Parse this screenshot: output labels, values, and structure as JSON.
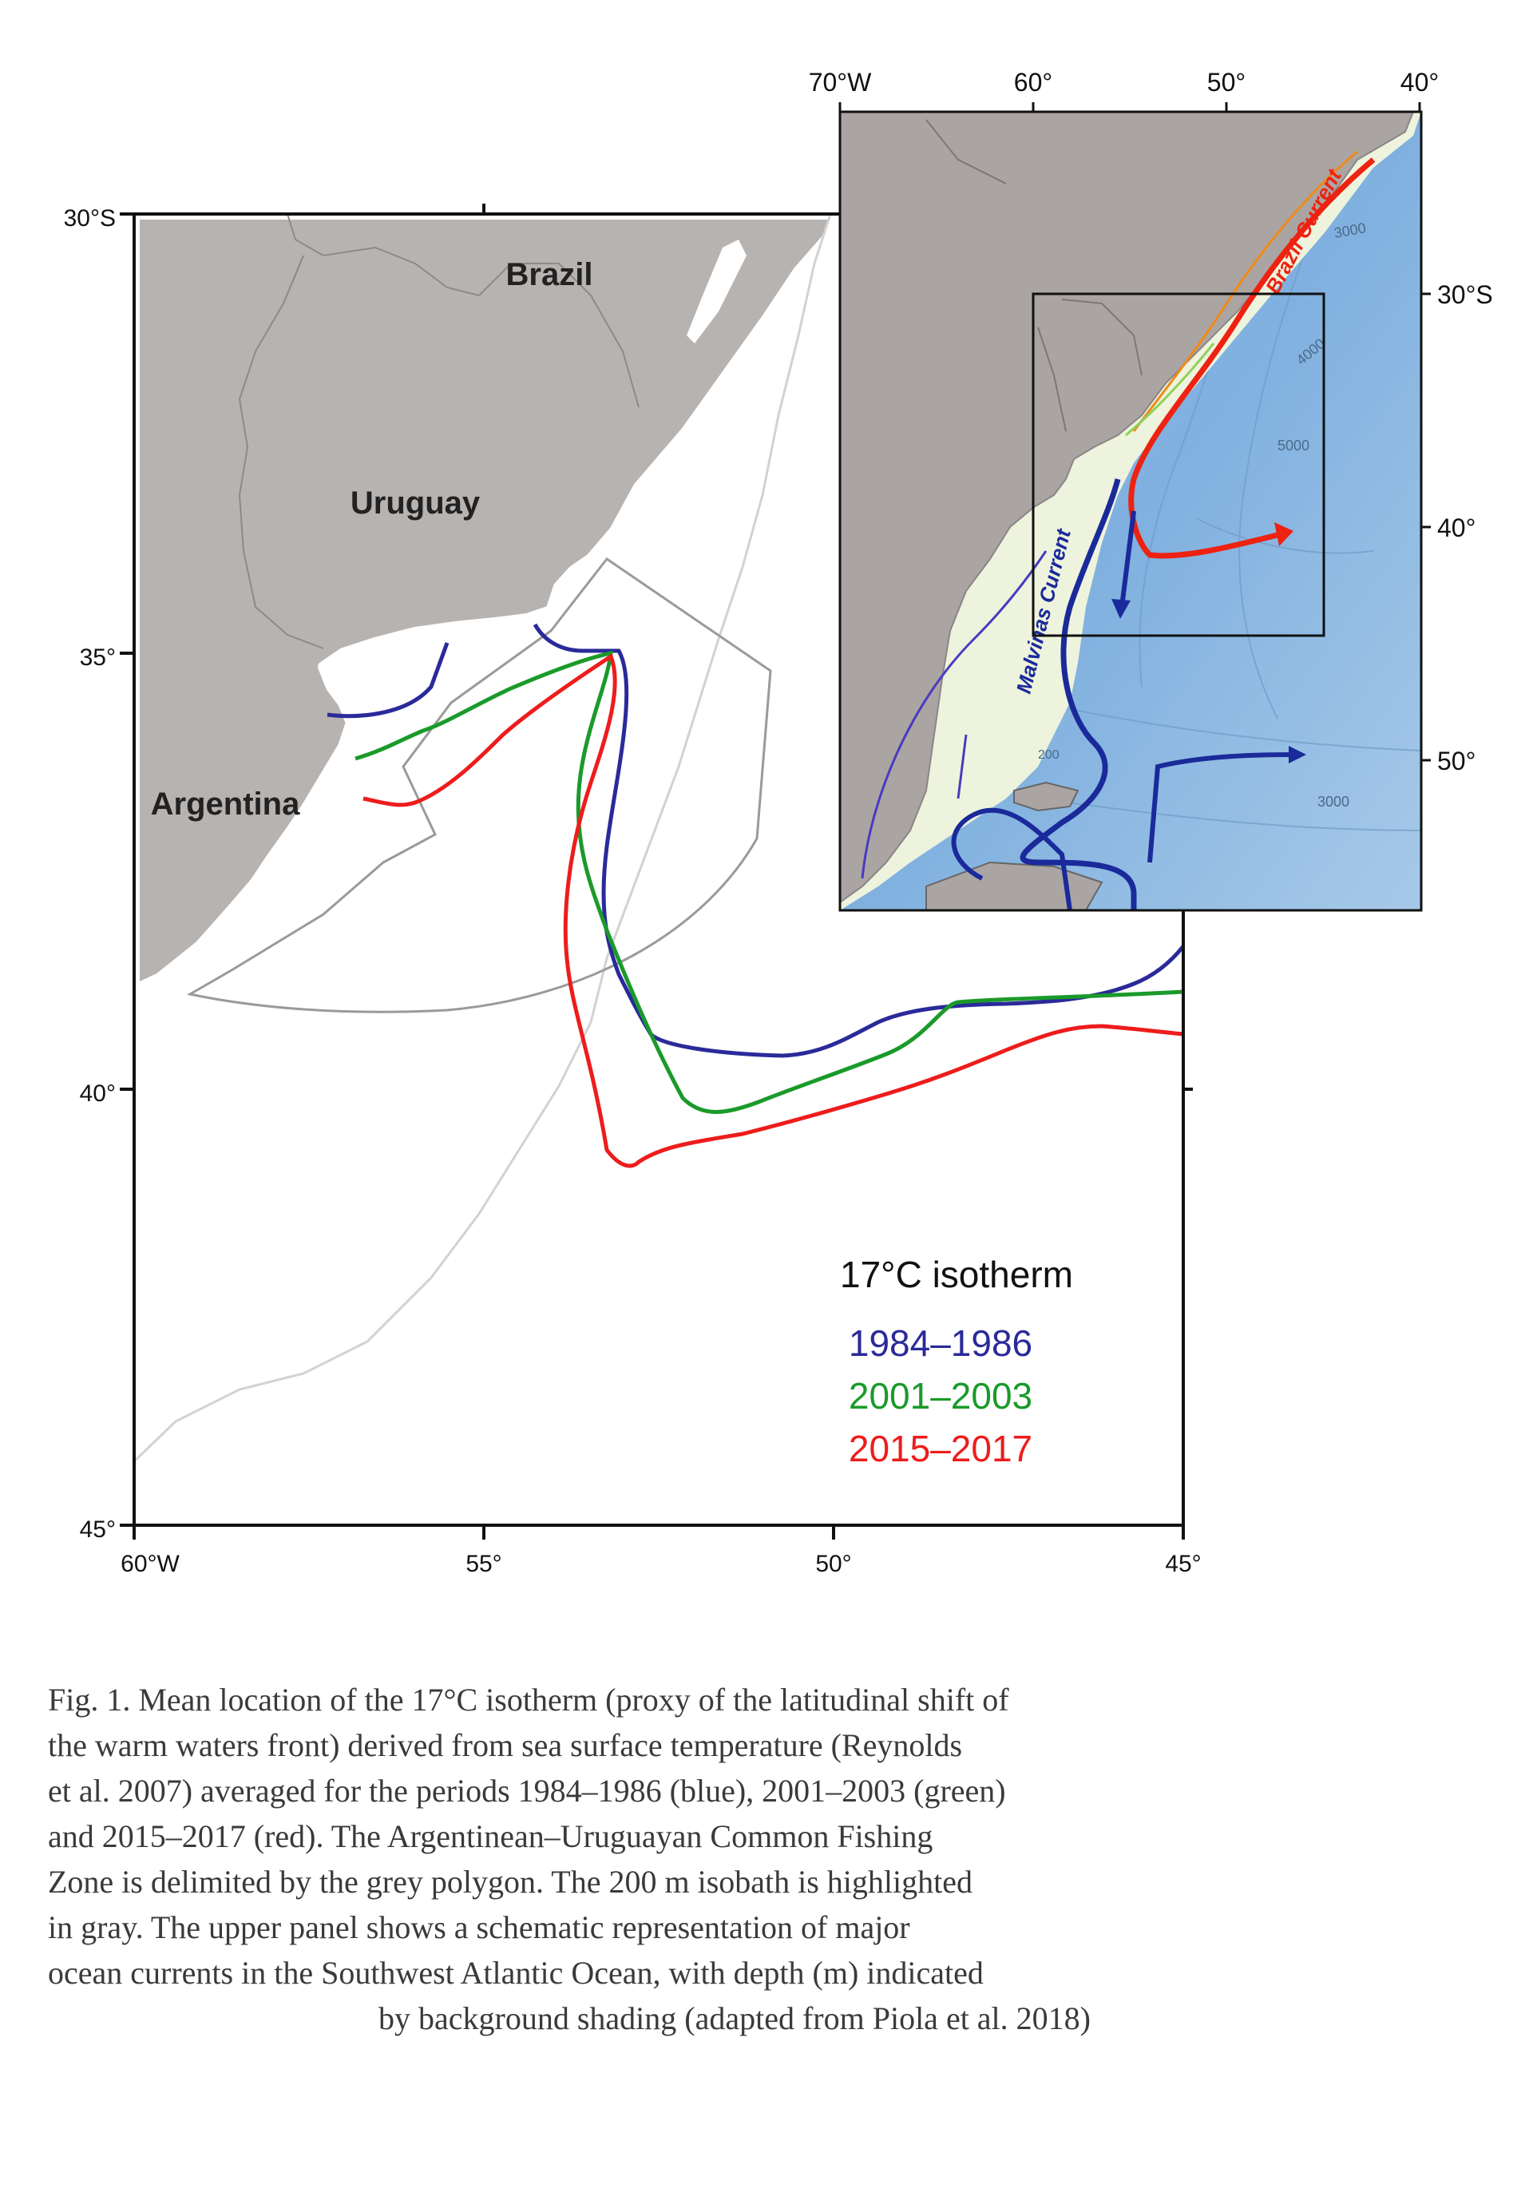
{
  "main_map": {
    "countries": {
      "brazil": "Brazil",
      "uruguay": "Uruguay",
      "argentina": "Argentina"
    },
    "lat_labels": [
      "30°S",
      "35°",
      "40°",
      "45°"
    ],
    "lon_labels": [
      "60°W",
      "55°",
      "50°",
      "45°"
    ],
    "legend": {
      "title": "17°C isotherm",
      "entries": [
        {
          "label": "1984–1986",
          "color": "#2a2a9a"
        },
        {
          "label": "2001–2003",
          "color": "#1a9a2a"
        },
        {
          "label": "2015–2017",
          "color": "#ee1c1c"
        }
      ]
    },
    "colors": {
      "land": "#b7b3b1",
      "ocean": "#ffffff",
      "isobath": "#c8c8c8",
      "zone": "#9a9a9a"
    }
  },
  "inset_map": {
    "lon_labels": [
      "70°W",
      "60°",
      "50°",
      "40°"
    ],
    "lat_labels": [
      "30°S",
      "40°",
      "50°"
    ],
    "currents": {
      "brazil": "Brazil Current",
      "malvinas": "Malvinas Current"
    },
    "depth_labels": [
      "3000",
      "4000",
      "5000",
      "3000",
      "200"
    ],
    "colors": {
      "land": "#aaa5a3",
      "shelf": "#eef3dd",
      "deep": "#7fb3e0",
      "brazil_current": "#ee2211",
      "malvinas_current": "#1a2a9a"
    }
  },
  "caption": {
    "line1": "Fig. 1. Mean location of the 17°C isotherm (proxy of the latitudinal shift of",
    "line2": "the warm waters front) derived from sea surface temperature (Reynolds",
    "line3": "et al. 2007) averaged for the periods 1984–1986 (blue), 2001–2003 (green)",
    "line4": "and 2015–2017 (red). The Argentinean–Uruguayan Common Fishing",
    "line5": "Zone is delimited by the grey polygon. The 200 m isobath is highlighted",
    "line6": "in gray. The upper panel shows a schematic representation of major",
    "line7": "ocean currents in the Southwest Atlantic Ocean, with depth (m) indicated",
    "line8": "by background shading (adapted from Piola et al. 2018)"
  }
}
